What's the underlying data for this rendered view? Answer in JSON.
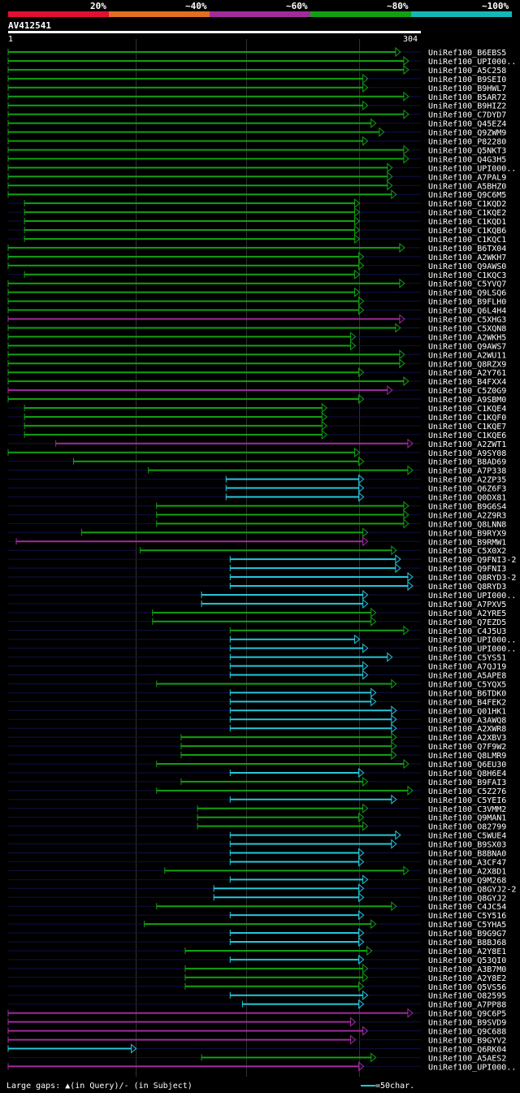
{
  "legend": {
    "labels": [
      "20%",
      "~40%",
      "~60%",
      "~80%",
      "~100%"
    ],
    "colors": [
      "#e01030",
      "#e07020",
      "#a02c9c",
      "#12a012",
      "#12b8b8"
    ]
  },
  "query": {
    "name": "AV412541",
    "start": "1",
    "end": "304"
  },
  "footer": {
    "gaps_text": "Large gaps: ▲(in Query)/- (in Subject)",
    "scale_text": "=50char."
  },
  "chart_data": {
    "type": "alignment-overview",
    "title": "",
    "query_length": 304,
    "color_scale": {
      "magenta": "~60%",
      "green": "~80%",
      "cyan": "~100%"
    },
    "hits": [
      {
        "name": "UniRef100_B6EBS5",
        "color": "green",
        "start": 1,
        "end": 289
      },
      {
        "name": "UniRef100_UPI000..",
        "color": "green",
        "start": 1,
        "end": 295
      },
      {
        "name": "UniRef100_A5C258",
        "color": "green",
        "start": 1,
        "end": 295
      },
      {
        "name": "UniRef100_B9SEI0",
        "color": "green",
        "start": 1,
        "end": 265
      },
      {
        "name": "UniRef100_B9HWL7",
        "color": "green",
        "start": 1,
        "end": 265
      },
      {
        "name": "UniRef100_B5AR72",
        "color": "green",
        "start": 1,
        "end": 295
      },
      {
        "name": "UniRef100_B9HIZ2",
        "color": "green",
        "start": 1,
        "end": 265
      },
      {
        "name": "UniRef100_C7DYD7",
        "color": "green",
        "start": 1,
        "end": 295
      },
      {
        "name": "UniRef100_Q45EZ4",
        "color": "green",
        "start": 1,
        "end": 271
      },
      {
        "name": "UniRef100_Q9ZWM9",
        "color": "green",
        "start": 1,
        "end": 277
      },
      {
        "name": "UniRef100_P82280",
        "color": "green",
        "start": 1,
        "end": 265
      },
      {
        "name": "UniRef100_Q5NKT3",
        "color": "green",
        "start": 1,
        "end": 295
      },
      {
        "name": "UniRef100_Q4G3H5",
        "color": "green",
        "start": 1,
        "end": 295
      },
      {
        "name": "UniRef100_UPI000..",
        "color": "green",
        "start": 1,
        "end": 283
      },
      {
        "name": "UniRef100_A7PAL9",
        "color": "green",
        "start": 1,
        "end": 283
      },
      {
        "name": "UniRef100_A5BHZ0",
        "color": "green",
        "start": 1,
        "end": 283
      },
      {
        "name": "UniRef100_Q9C6M5",
        "color": "green",
        "start": 1,
        "end": 286
      },
      {
        "name": "UniRef100_C1KQD2",
        "color": "green",
        "start": 13,
        "end": 259
      },
      {
        "name": "UniRef100_C1KQE2",
        "color": "green",
        "start": 13,
        "end": 259
      },
      {
        "name": "UniRef100_C1KQD1",
        "color": "green",
        "start": 13,
        "end": 259
      },
      {
        "name": "UniRef100_C1KQB6",
        "color": "green",
        "start": 13,
        "end": 259
      },
      {
        "name": "UniRef100_C1KQC1",
        "color": "green",
        "start": 13,
        "end": 259
      },
      {
        "name": "UniRef100_B6TX04",
        "color": "green",
        "start": 1,
        "end": 292
      },
      {
        "name": "UniRef100_A2WKH7",
        "color": "green",
        "start": 1,
        "end": 262
      },
      {
        "name": "UniRef100_Q9AWS0",
        "color": "green",
        "start": 1,
        "end": 262
      },
      {
        "name": "UniRef100_C1KQC3",
        "color": "green",
        "start": 13,
        "end": 259
      },
      {
        "name": "UniRef100_C5YVQ7",
        "color": "green",
        "start": 1,
        "end": 292
      },
      {
        "name": "UniRef100_Q9LSQ6",
        "color": "green",
        "start": 1,
        "end": 259
      },
      {
        "name": "UniRef100_B9FLH0",
        "color": "green",
        "start": 1,
        "end": 262
      },
      {
        "name": "UniRef100_Q6L4H4",
        "color": "green",
        "start": 1,
        "end": 262
      },
      {
        "name": "UniRef100_C5XHG3",
        "color": "magenta",
        "start": 1,
        "end": 292
      },
      {
        "name": "UniRef100_C5XQN8",
        "color": "green",
        "start": 1,
        "end": 289
      },
      {
        "name": "UniRef100_A2WKH5",
        "color": "green",
        "start": 1,
        "end": 256
      },
      {
        "name": "UniRef100_Q9AWS7",
        "color": "green",
        "start": 1,
        "end": 256
      },
      {
        "name": "UniRef100_A2WU11",
        "color": "green",
        "start": 1,
        "end": 292
      },
      {
        "name": "UniRef100_Q8RZX9",
        "color": "green",
        "start": 1,
        "end": 292
      },
      {
        "name": "UniRef100_A2Y761",
        "color": "green",
        "start": 1,
        "end": 262
      },
      {
        "name": "UniRef100_B4FXX4",
        "color": "green",
        "start": 1,
        "end": 295
      },
      {
        "name": "UniRef100_C5Z0G9",
        "color": "magenta",
        "start": 1,
        "end": 283
      },
      {
        "name": "UniRef100_A9SBM0",
        "color": "green",
        "start": 1,
        "end": 262
      },
      {
        "name": "UniRef100_C1KQE4",
        "color": "green",
        "start": 13,
        "end": 235
      },
      {
        "name": "UniRef100_C1KQF0",
        "color": "green",
        "start": 13,
        "end": 235
      },
      {
        "name": "UniRef100_C1KQE7",
        "color": "green",
        "start": 13,
        "end": 235
      },
      {
        "name": "UniRef100_C1KQE6",
        "color": "green",
        "start": 13,
        "end": 235
      },
      {
        "name": "UniRef100_A2ZWT1",
        "color": "magenta",
        "start": 36,
        "end": 298
      },
      {
        "name": "UniRef100_A9SY08",
        "color": "green",
        "start": 1,
        "end": 259
      },
      {
        "name": "UniRef100_B8AD69",
        "color": "green",
        "start": 49,
        "end": 262
      },
      {
        "name": "UniRef100_A7P338",
        "color": "green",
        "start": 104,
        "end": 298
      },
      {
        "name": "UniRef100_A2ZP35",
        "color": "cyan",
        "start": 161,
        "end": 262
      },
      {
        "name": "UniRef100_Q6Z6F3",
        "color": "cyan",
        "start": 161,
        "end": 262
      },
      {
        "name": "UniRef100_Q0DX81",
        "color": "cyan",
        "start": 161,
        "end": 262
      },
      {
        "name": "UniRef100_B9G6S4",
        "color": "green",
        "start": 110,
        "end": 295
      },
      {
        "name": "UniRef100_A2Z9R3",
        "color": "green",
        "start": 110,
        "end": 295
      },
      {
        "name": "UniRef100_Q8LNN8",
        "color": "green",
        "start": 110,
        "end": 295
      },
      {
        "name": "UniRef100_B9RYX9",
        "color": "green",
        "start": 55,
        "end": 265
      },
      {
        "name": "UniRef100_B9RMW1",
        "color": "magenta",
        "start": 7,
        "end": 265
      },
      {
        "name": "UniRef100_C5X0X2",
        "color": "green",
        "start": 98,
        "end": 286
      },
      {
        "name": "UniRef100_Q9FNI3-2",
        "color": "cyan",
        "start": 164,
        "end": 289
      },
      {
        "name": "UniRef100_Q9FNI3",
        "color": "cyan",
        "start": 164,
        "end": 289
      },
      {
        "name": "UniRef100_Q8RYD3-2",
        "color": "cyan",
        "start": 164,
        "end": 298
      },
      {
        "name": "UniRef100_Q8RYD3",
        "color": "cyan",
        "start": 164,
        "end": 298
      },
      {
        "name": "UniRef100_UPI000..",
        "color": "cyan",
        "start": 143,
        "end": 265
      },
      {
        "name": "UniRef100_A7PXV5",
        "color": "cyan",
        "start": 143,
        "end": 265
      },
      {
        "name": "UniRef100_A2YRE5",
        "color": "green",
        "start": 107,
        "end": 271
      },
      {
        "name": "UniRef100_Q7EZD5",
        "color": "green",
        "start": 107,
        "end": 271
      },
      {
        "name": "UniRef100_C4J5U3",
        "color": "green",
        "start": 164,
        "end": 295
      },
      {
        "name": "UniRef100_UPI000..",
        "color": "cyan",
        "start": 164,
        "end": 259
      },
      {
        "name": "UniRef100_UPI000..",
        "color": "cyan",
        "start": 164,
        "end": 265
      },
      {
        "name": "UniRef100_C5YS51",
        "color": "cyan",
        "start": 164,
        "end": 283
      },
      {
        "name": "UniRef100_A7QJ19",
        "color": "cyan",
        "start": 164,
        "end": 265
      },
      {
        "name": "UniRef100_A5APE8",
        "color": "cyan",
        "start": 164,
        "end": 265
      },
      {
        "name": "UniRef100_C5YQX5",
        "color": "green",
        "start": 110,
        "end": 286
      },
      {
        "name": "UniRef100_B6TDK0",
        "color": "cyan",
        "start": 164,
        "end": 271
      },
      {
        "name": "UniRef100_B4FEK2",
        "color": "cyan",
        "start": 164,
        "end": 271
      },
      {
        "name": "UniRef100_Q01HK1",
        "color": "cyan",
        "start": 164,
        "end": 286
      },
      {
        "name": "UniRef100_A3AWQ8",
        "color": "cyan",
        "start": 164,
        "end": 286
      },
      {
        "name": "UniRef100_A2XWR8",
        "color": "cyan",
        "start": 164,
        "end": 286
      },
      {
        "name": "UniRef100_A2XBV3",
        "color": "green",
        "start": 128,
        "end": 286
      },
      {
        "name": "UniRef100_Q7F9W2",
        "color": "green",
        "start": 128,
        "end": 286
      },
      {
        "name": "UniRef100_Q8LMR9",
        "color": "green",
        "start": 128,
        "end": 286
      },
      {
        "name": "UniRef100_Q6EU30",
        "color": "green",
        "start": 110,
        "end": 295
      },
      {
        "name": "UniRef100_Q8H6E4",
        "color": "cyan",
        "start": 164,
        "end": 262
      },
      {
        "name": "UniRef100_B9FAI3",
        "color": "green",
        "start": 128,
        "end": 265
      },
      {
        "name": "UniRef100_C5Z276",
        "color": "green",
        "start": 110,
        "end": 298
      },
      {
        "name": "UniRef100_C5YEI6",
        "color": "cyan",
        "start": 164,
        "end": 286
      },
      {
        "name": "UniRef100_C3VMM2",
        "color": "green",
        "start": 140,
        "end": 265
      },
      {
        "name": "UniRef100_Q9MAN1",
        "color": "green",
        "start": 140,
        "end": 262
      },
      {
        "name": "UniRef100_O82799",
        "color": "green",
        "start": 140,
        "end": 265
      },
      {
        "name": "UniRef100_C5WUE4",
        "color": "cyan",
        "start": 164,
        "end": 289
      },
      {
        "name": "UniRef100_B9SX03",
        "color": "cyan",
        "start": 164,
        "end": 286
      },
      {
        "name": "UniRef100_B8BNA0",
        "color": "cyan",
        "start": 164,
        "end": 262
      },
      {
        "name": "UniRef100_A3CF47",
        "color": "cyan",
        "start": 164,
        "end": 262
      },
      {
        "name": "UniRef100_A2X8D1",
        "color": "green",
        "start": 116,
        "end": 295
      },
      {
        "name": "UniRef100_Q9M268",
        "color": "cyan",
        "start": 164,
        "end": 265
      },
      {
        "name": "UniRef100_Q8GYJ2-2",
        "color": "cyan",
        "start": 152,
        "end": 262
      },
      {
        "name": "UniRef100_Q8GYJ2",
        "color": "cyan",
        "start": 152,
        "end": 262
      },
      {
        "name": "UniRef100_C4JC54",
        "color": "green",
        "start": 110,
        "end": 286
      },
      {
        "name": "UniRef100_C5Y516",
        "color": "cyan",
        "start": 164,
        "end": 262
      },
      {
        "name": "UniRef100_C5YHA5",
        "color": "green",
        "start": 101,
        "end": 271
      },
      {
        "name": "UniRef100_B9G9G7",
        "color": "cyan",
        "start": 164,
        "end": 262
      },
      {
        "name": "UniRef100_B8BJ68",
        "color": "cyan",
        "start": 164,
        "end": 262
      },
      {
        "name": "UniRef100_A2Y8E1",
        "color": "green",
        "start": 131,
        "end": 268
      },
      {
        "name": "UniRef100_Q53QI0",
        "color": "cyan",
        "start": 164,
        "end": 262
      },
      {
        "name": "UniRef100_A3B7M0",
        "color": "green",
        "start": 131,
        "end": 265
      },
      {
        "name": "UniRef100_A2Y8E2",
        "color": "green",
        "start": 131,
        "end": 265
      },
      {
        "name": "UniRef100_Q5VS56",
        "color": "green",
        "start": 131,
        "end": 262
      },
      {
        "name": "UniRef100_O82595",
        "color": "cyan",
        "start": 164,
        "end": 265
      },
      {
        "name": "UniRef100_A7PP88",
        "color": "cyan",
        "start": 173,
        "end": 262
      },
      {
        "name": "UniRef100_Q9C6P5",
        "color": "magenta",
        "start": 1,
        "end": 298
      },
      {
        "name": "UniRef100_B9SVD9",
        "color": "magenta",
        "start": 1,
        "end": 256
      },
      {
        "name": "UniRef100_Q9C688",
        "color": "magenta",
        "start": 1,
        "end": 265
      },
      {
        "name": "UniRef100_B9GYV2",
        "color": "magenta",
        "start": 1,
        "end": 256
      },
      {
        "name": "UniRef100_Q6RK04",
        "color": "cyan",
        "start": 1,
        "end": 95
      },
      {
        "name": "UniRef100_A5AES2",
        "color": "green",
        "start": 143,
        "end": 271
      },
      {
        "name": "UniRef100_UPI000..",
        "color": "magenta",
        "start": 1,
        "end": 262
      }
    ]
  }
}
